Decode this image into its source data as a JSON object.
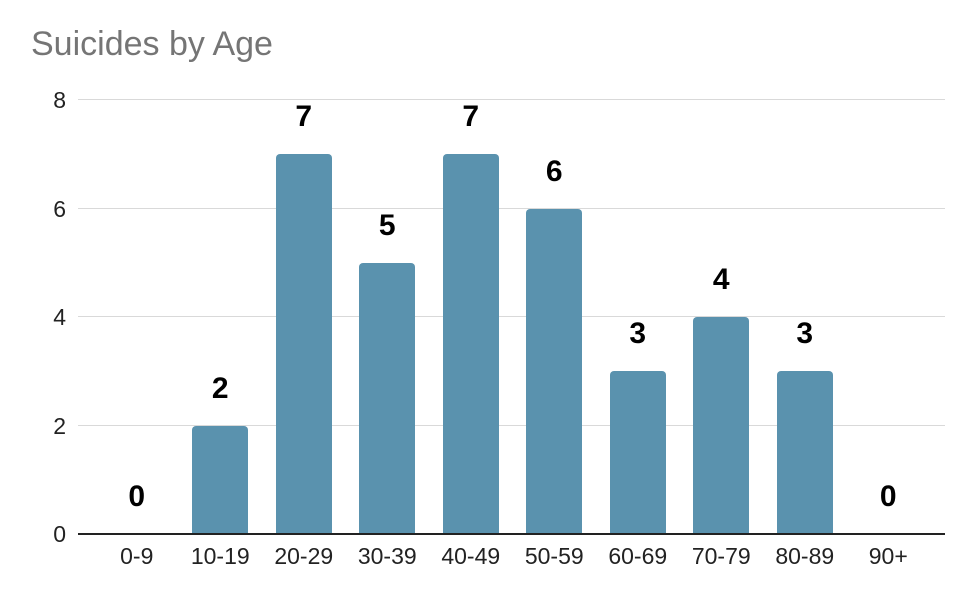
{
  "chart_data": {
    "type": "bar",
    "title": "Suicides by Age",
    "categories": [
      "0-9",
      "10-19",
      "20-29",
      "30-39",
      "40-49",
      "50-59",
      "60-69",
      "70-79",
      "80-89",
      "90+"
    ],
    "values": [
      0,
      2,
      7,
      5,
      7,
      6,
      3,
      4,
      3,
      0
    ],
    "xlabel": "",
    "ylabel": "",
    "ylim": [
      0,
      8
    ],
    "yticks": [
      0,
      2,
      4,
      6,
      8
    ],
    "grid": true,
    "legend": "none",
    "data_labels": true,
    "colors": {
      "bar": "#5a92ae",
      "title": "#757575",
      "axis_text": "#222222",
      "gridline": "#d9d9d9",
      "baseline": "#222222",
      "data_label": "#000000",
      "background": "#ffffff"
    }
  }
}
